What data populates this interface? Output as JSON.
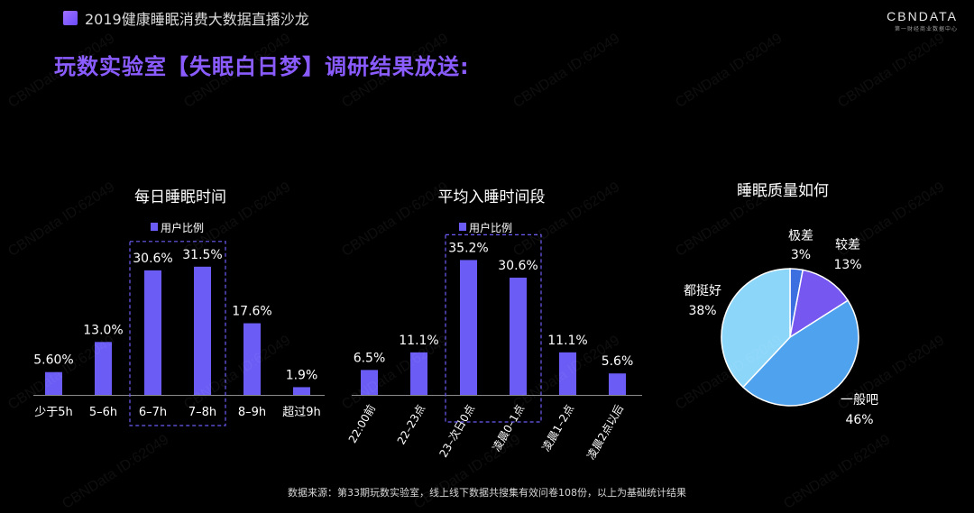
{
  "header": {
    "event_title": "2019健康睡眠消费大数据直播沙龙"
  },
  "logo": {
    "name": "CBNDATA",
    "tagline": "第一财经商业数据中心"
  },
  "main_title": "玩数实验室【失眠白日梦】调研结果放送:",
  "watermark": "CBNData ID:62049",
  "footer": {
    "source": "数据来源：第33期玩数实验室，线上线下数据共搜集有效问卷108份，以上为基础统计结果"
  },
  "colors": {
    "bar": "#6a5cf4",
    "title_purple": "#8a5cff",
    "pie_light_blue": "#8cd6fa",
    "pie_blue": "#4fa3ee",
    "pie_purple": "#7658f0",
    "pie_dark_blue": "#3c6fe0"
  },
  "chart_data": [
    {
      "type": "bar",
      "title": "每日睡眠时间",
      "legend": "用户比例",
      "categories": [
        "少于5h",
        "5–6h",
        "6–7h",
        "7–8h",
        "8–9h",
        "超过9h"
      ],
      "values": [
        5.6,
        13.0,
        30.6,
        31.5,
        17.6,
        1.9
      ],
      "value_labels": [
        "5.60%",
        "13.0%",
        "30.6%",
        "31.5%",
        "17.6%",
        "1.9%"
      ],
      "ylim": [
        0,
        35
      ],
      "highlight": [
        "6–7h",
        "7–8h"
      ]
    },
    {
      "type": "bar",
      "title": "平均入睡时间段",
      "legend": "用户比例",
      "categories": [
        "22:00前",
        "22–23点",
        "23–次日0点",
        "凌晨0–1点",
        "凌晨1–2点",
        "凌晨2点以后"
      ],
      "values": [
        6.5,
        11.1,
        35.2,
        30.6,
        11.1,
        5.6
      ],
      "value_labels": [
        "6.5%",
        "11.1%",
        "35.2%",
        "30.6%",
        "11.1%",
        "5.6%"
      ],
      "ylim": [
        0,
        40
      ],
      "highlight": [
        "23–次日0点",
        "凌晨0–1点"
      ]
    },
    {
      "type": "pie",
      "title": "睡眠质量如何",
      "slices": [
        {
          "name": "极差",
          "value": 3,
          "label": "3%",
          "color": "#3c6fe0"
        },
        {
          "name": "较差",
          "value": 13,
          "label": "13%",
          "color": "#7658f0"
        },
        {
          "name": "一般吧",
          "value": 46,
          "label": "46%",
          "color": "#4fa3ee"
        },
        {
          "name": "都挺好",
          "value": 38,
          "label": "38%",
          "color": "#8cd6fa"
        }
      ]
    }
  ]
}
